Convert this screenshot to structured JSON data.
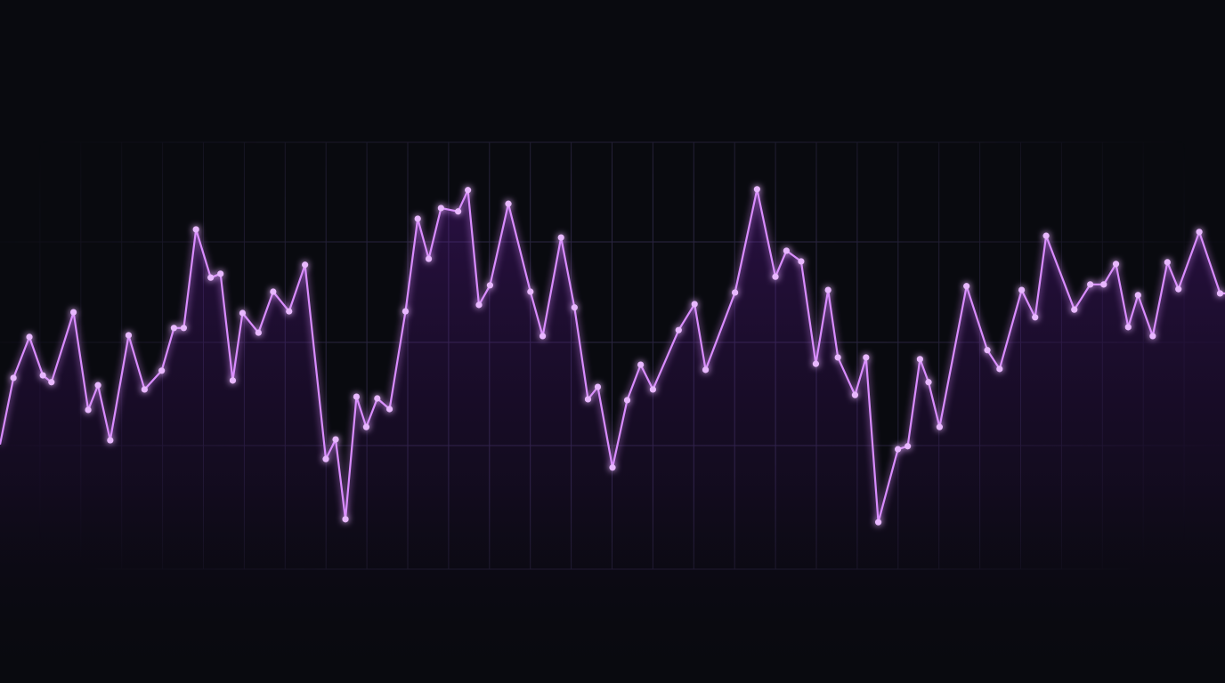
{
  "chart_data": {
    "type": "line",
    "title": "",
    "xlabel": "",
    "ylabel": "",
    "xlim": [
      0,
      100
    ],
    "ylim": [
      0,
      100
    ],
    "grid": true,
    "legend": "none",
    "markers": true,
    "colors": {
      "background": "#090a0f",
      "line": "#d98cff",
      "marker": "#e8b8ff",
      "grid": "#2a2540",
      "fill": "#7a1fc4"
    },
    "series": [
      {
        "x": [
          0,
          1.1,
          2.4,
          3.5,
          4.2,
          6,
          7.2,
          8,
          9,
          10.5,
          11.8,
          13.2,
          14.2,
          15,
          16,
          17.2,
          18,
          19,
          19.8,
          21.1,
          22.3,
          23.6,
          24.9,
          26.6,
          27.4,
          28.2,
          29.1,
          29.9,
          30.8,
          31.8,
          33.1,
          34.1,
          35,
          36,
          37.4,
          38.2,
          39.1,
          40,
          41.5,
          43.3,
          44.3,
          45.8,
          46.9,
          48,
          48.8,
          50,
          51.2,
          52.3,
          53.3,
          55.4,
          56.7,
          57.6,
          60,
          61.8,
          63.3,
          64.2,
          65.4,
          66.6,
          67.6,
          68.4,
          69.8,
          70.7,
          71.7,
          73.3,
          74.1,
          75.1,
          75.8,
          76.7,
          78.9,
          80.6,
          81.6,
          83.4,
          84.5,
          85.4,
          87.7,
          89,
          90.1,
          91.1,
          92.1,
          92.9,
          94.1,
          95.3,
          96.2,
          97.9,
          99.6
        ],
        "y": [
          29.2,
          44.8,
          54.4,
          45.4,
          43.8,
          60.2,
          37.3,
          43.1,
          30.2,
          54.8,
          42.1,
          46.5,
          56.5,
          56.5,
          79.6,
          68.3,
          69.2,
          44.2,
          60,
          55.4,
          65,
          60.4,
          71.3,
          25.8,
          30.4,
          11.7,
          40.4,
          33.3,
          40,
          37.5,
          60.4,
          82.1,
          72.7,
          84.6,
          83.8,
          88.8,
          61.9,
          66.5,
          85.6,
          65,
          54.6,
          77.7,
          61.3,
          39.8,
          42.7,
          23.8,
          39.6,
          47.9,
          42.1,
          56,
          62.1,
          46.7,
          64.8,
          89,
          68.5,
          74.6,
          72.1,
          48.1,
          65.4,
          49.6,
          40.8,
          49.6,
          11,
          28.1,
          28.8,
          49.2,
          43.8,
          33.3,
          66.3,
          51.3,
          46.9,
          65.4,
          59,
          78.1,
          60.8,
          66.7,
          66.7,
          71.5,
          56.7,
          64.2,
          54.6,
          71.9,
          65.6,
          79,
          64.6
        ]
      }
    ]
  }
}
